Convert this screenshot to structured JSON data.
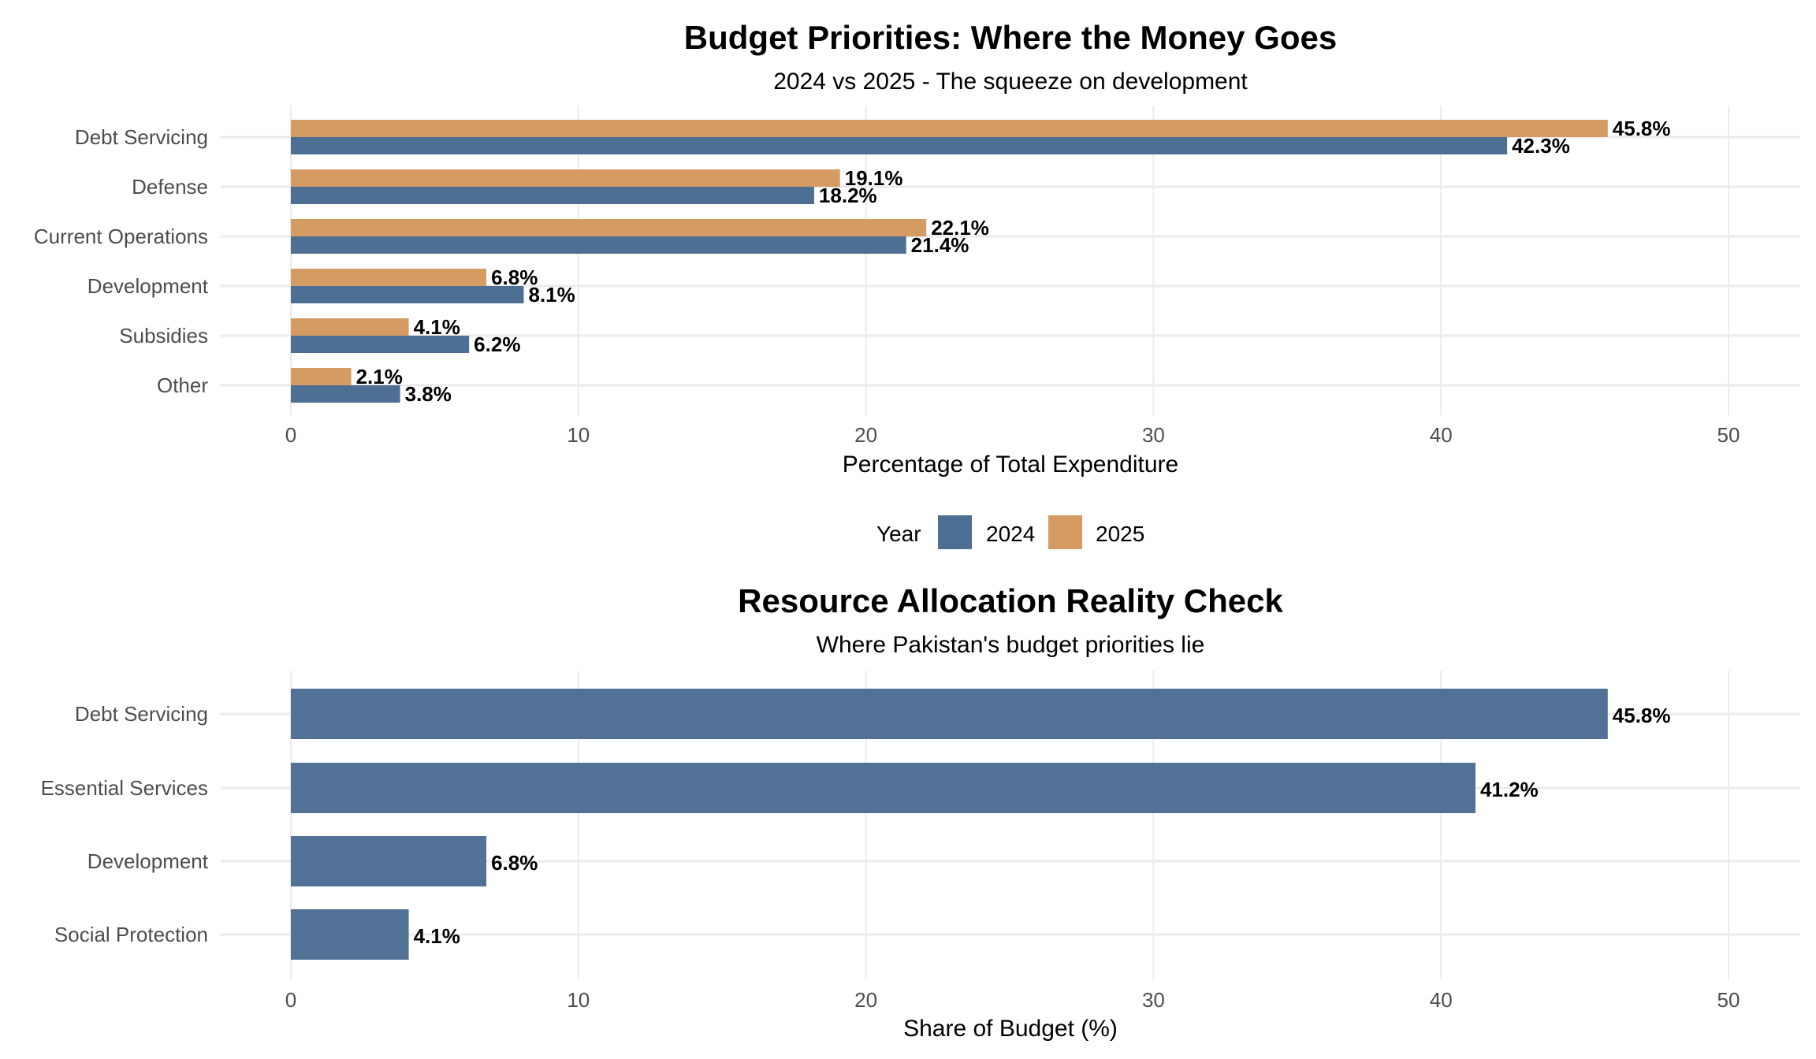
{
  "chart_data": [
    {
      "type": "bar",
      "orientation": "horizontal",
      "title": "Budget Priorities: Where the Money Goes",
      "subtitle": "2024 vs 2025 - The squeeze on development",
      "xlabel": "Percentage of Total Expenditure",
      "ylabel": "",
      "xlim": [
        0,
        50
      ],
      "xticks": [
        0,
        10,
        20,
        30,
        40,
        50
      ],
      "grid": true,
      "categories": [
        "Debt Servicing",
        "Defense",
        "Current Operations",
        "Development",
        "Subsidies",
        "Other"
      ],
      "series": [
        {
          "name": "2024",
          "color": "#4e6f94",
          "values": [
            42.3,
            18.2,
            21.4,
            8.1,
            6.2,
            3.8
          ],
          "labels": [
            "42.3%",
            "18.2%",
            "21.4%",
            "8.1%",
            "6.2%",
            "3.8%"
          ]
        },
        {
          "name": "2025",
          "color": "#d69b62",
          "values": [
            45.8,
            19.1,
            22.1,
            6.8,
            4.1,
            2.1
          ],
          "labels": [
            "45.8%",
            "19.1%",
            "22.1%",
            "6.8%",
            "4.1%",
            "2.1%"
          ]
        }
      ],
      "legend": {
        "title": "Year",
        "position": "bottom",
        "entries": [
          "2024",
          "2025"
        ]
      }
    },
    {
      "type": "bar",
      "orientation": "horizontal",
      "title": "Resource Allocation Reality Check",
      "subtitle": "Where Pakistan's budget priorities lie",
      "xlabel": "Share of Budget (%)",
      "ylabel": "",
      "xlim": [
        0,
        50
      ],
      "xticks": [
        0,
        10,
        20,
        30,
        40,
        50
      ],
      "grid": true,
      "categories": [
        "Debt Servicing",
        "Essential Services",
        "Development",
        "Social Protection"
      ],
      "color": "#4e6f94",
      "values": [
        45.8,
        41.2,
        6.8,
        4.1
      ],
      "labels": [
        "45.8%",
        "41.2%",
        "6.8%",
        "4.1%"
      ]
    }
  ]
}
